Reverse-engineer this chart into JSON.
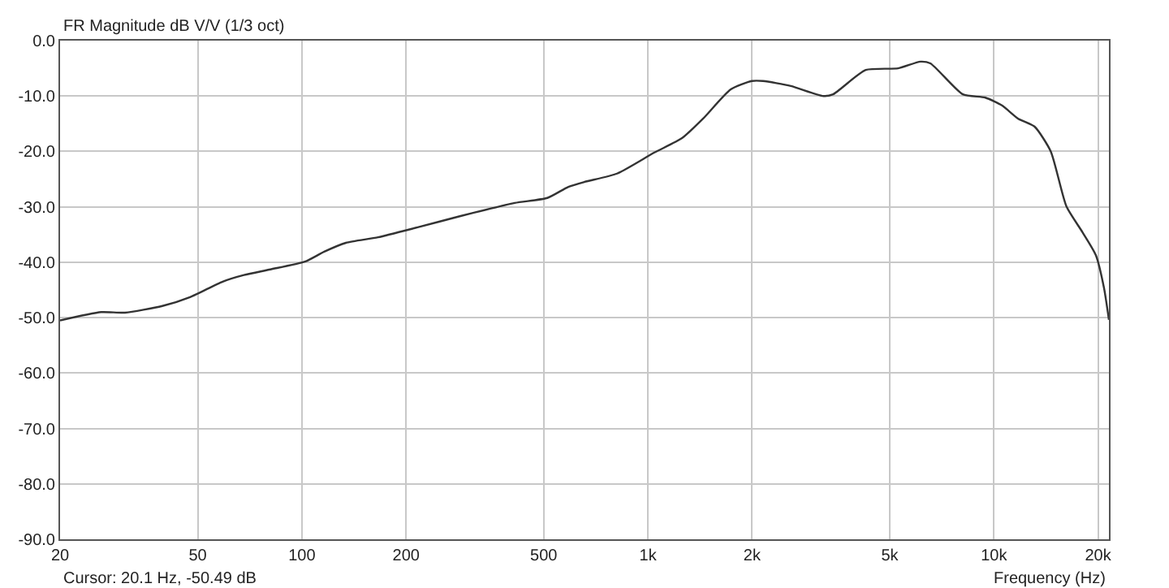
{
  "chart_data": {
    "type": "line",
    "title": "FR Magnitude dB V/V (1/3 oct)",
    "xlabel": "Frequency (Hz)",
    "annotations": [
      "Cursor: 20.1 Hz, -50.49 dB"
    ],
    "log": "x",
    "grid": true,
    "marker": "none",
    "line_style": "solid",
    "xlim": [
      20,
      21500
    ],
    "xticks": [
      20,
      50,
      100,
      200,
      500,
      {
        "value": 1000,
        "label": "1k"
      },
      {
        "value": 2000,
        "label": "2k"
      },
      {
        "value": 5000,
        "label": "5k"
      },
      {
        "value": 10000,
        "label": "10k"
      },
      {
        "value": 20000,
        "label": "20k"
      }
    ],
    "ylim": [
      -90,
      0
    ],
    "yticks": [
      {
        "value": 0,
        "label": "0.0"
      },
      {
        "value": -10,
        "label": "-10.0"
      },
      {
        "value": -20,
        "label": "-20.0"
      },
      {
        "value": -30,
        "label": "-30.0"
      },
      {
        "value": -40,
        "label": "-40.0"
      },
      {
        "value": -50,
        "label": "-50.0"
      },
      {
        "value": -60,
        "label": "-60.0"
      },
      {
        "value": -70,
        "label": "-70.0"
      },
      {
        "value": -80,
        "label": "-80.0"
      },
      {
        "value": -90,
        "label": "-90.0"
      }
    ],
    "series": [
      {
        "color": "#333333",
        "x": [
          20,
          26.3,
          30.8,
          39.5,
          47.5,
          59,
          68,
          81,
          102,
          116,
          134,
          166,
          216,
          286,
          412,
          512,
          589,
          656,
          814,
          1044,
          1255,
          1443,
          1736,
          1997,
          2153,
          2588,
          3213,
          3428,
          4260,
          5285,
          6130,
          6550,
          8130,
          9450,
          10550,
          11760,
          13100,
          14600,
          16200,
          18040,
          19700,
          20800,
          21500
        ],
        "values": [
          -50.5,
          -49.0,
          -49.1,
          -47.9,
          -46.3,
          -43.5,
          -42.3,
          -41.3,
          -39.9,
          -38.1,
          -36.5,
          -35.5,
          -33.7,
          -31.7,
          -29.3,
          -28.4,
          -26.4,
          -25.5,
          -24.0,
          -20.2,
          -17.6,
          -14.1,
          -8.8,
          -7.3,
          -7.3,
          -8.2,
          -10.0,
          -9.7,
          -5.3,
          -5.0,
          -3.8,
          -4.1,
          -9.7,
          -10.3,
          -11.7,
          -14.1,
          -15.5,
          -20.0,
          -29.9,
          -34.6,
          -38.7,
          -44.6,
          -50.4
        ]
      }
    ]
  }
}
